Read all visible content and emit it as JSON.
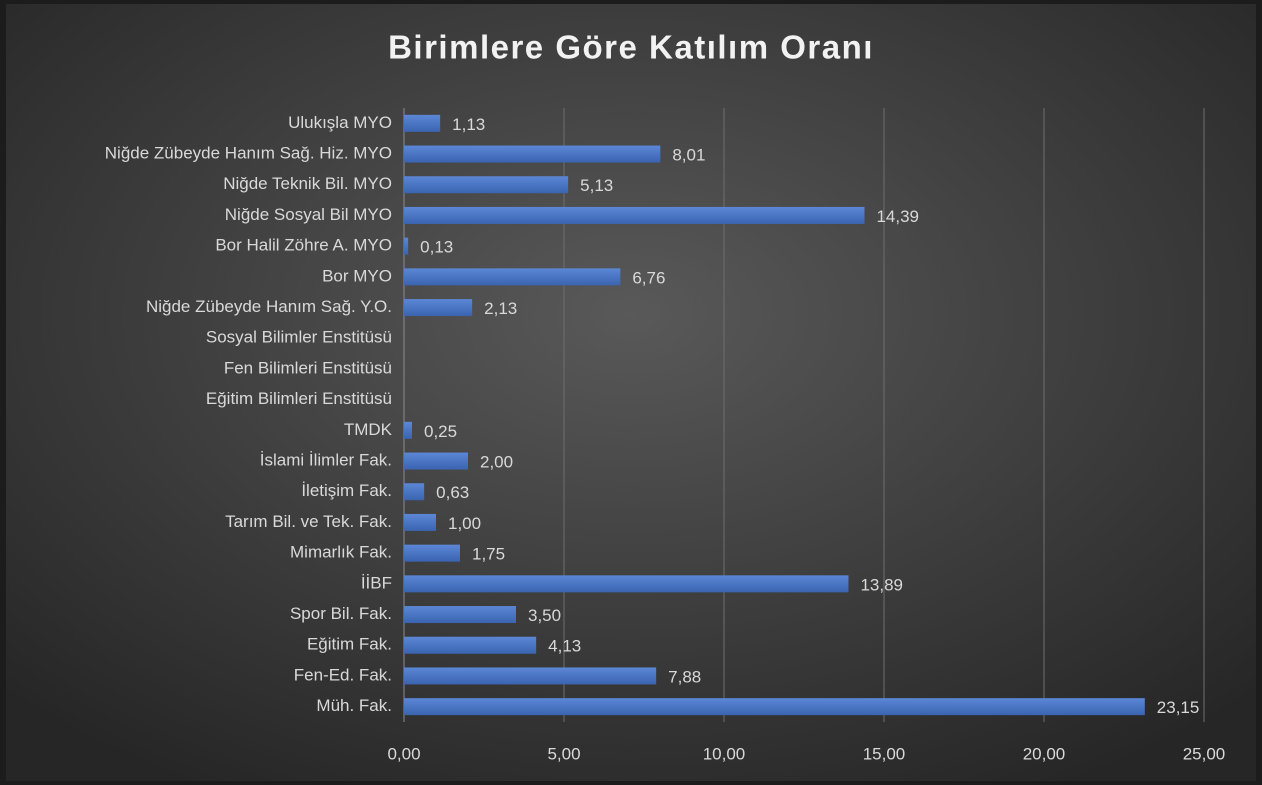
{
  "chart_data": {
    "type": "bar",
    "orientation": "horizontal",
    "title": "Birimlere Göre Katılım Oranı",
    "categories": [
      "Ulukışla MYO",
      "Niğde Zübeyde Hanım Sağ. Hiz. MYO",
      "Niğde Teknik Bil. MYO",
      "Niğde Sosyal Bil MYO",
      "Bor Halil Zöhre A. MYO",
      "Bor MYO",
      "Niğde Zübeyde Hanım Sağ. Y.O.",
      "Sosyal Bilimler Enstitüsü",
      "Fen Bilimleri Enstitüsü",
      "Eğitim Bilimleri Enstitüsü",
      "TMDK",
      "İslami İlimler Fak.",
      "İletişim Fak.",
      "Tarım Bil. ve Tek. Fak.",
      "Mimarlık Fak.",
      "İİBF",
      "Spor Bil. Fak.",
      "Eğitim Fak.",
      "Fen-Ed. Fak.",
      "Müh. Fak."
    ],
    "values": [
      1.13,
      8.01,
      5.13,
      14.39,
      0.13,
      6.76,
      2.13,
      null,
      null,
      null,
      0.25,
      2.0,
      0.63,
      1.0,
      1.75,
      13.89,
      3.5,
      4.13,
      7.88,
      23.15
    ],
    "value_labels": [
      "1,13",
      "8,01",
      "5,13",
      "14,39",
      "0,13",
      "6,76",
      "2,13",
      null,
      null,
      null,
      "0,25",
      "2,00",
      "0,63",
      "1,00",
      "1,75",
      "13,89",
      "3,50",
      "4,13",
      "7,88",
      "23,15"
    ],
    "color": "#4472c4",
    "xlim": [
      0,
      25
    ],
    "xticks": [
      {
        "value": 0,
        "label": "0,00"
      },
      {
        "value": 5,
        "label": "5,00"
      },
      {
        "value": 10,
        "label": "10,00"
      },
      {
        "value": 15,
        "label": "15,00"
      },
      {
        "value": 20,
        "label": "20,00"
      },
      {
        "value": 25,
        "label": "25,00"
      }
    ],
    "grid": true
  }
}
